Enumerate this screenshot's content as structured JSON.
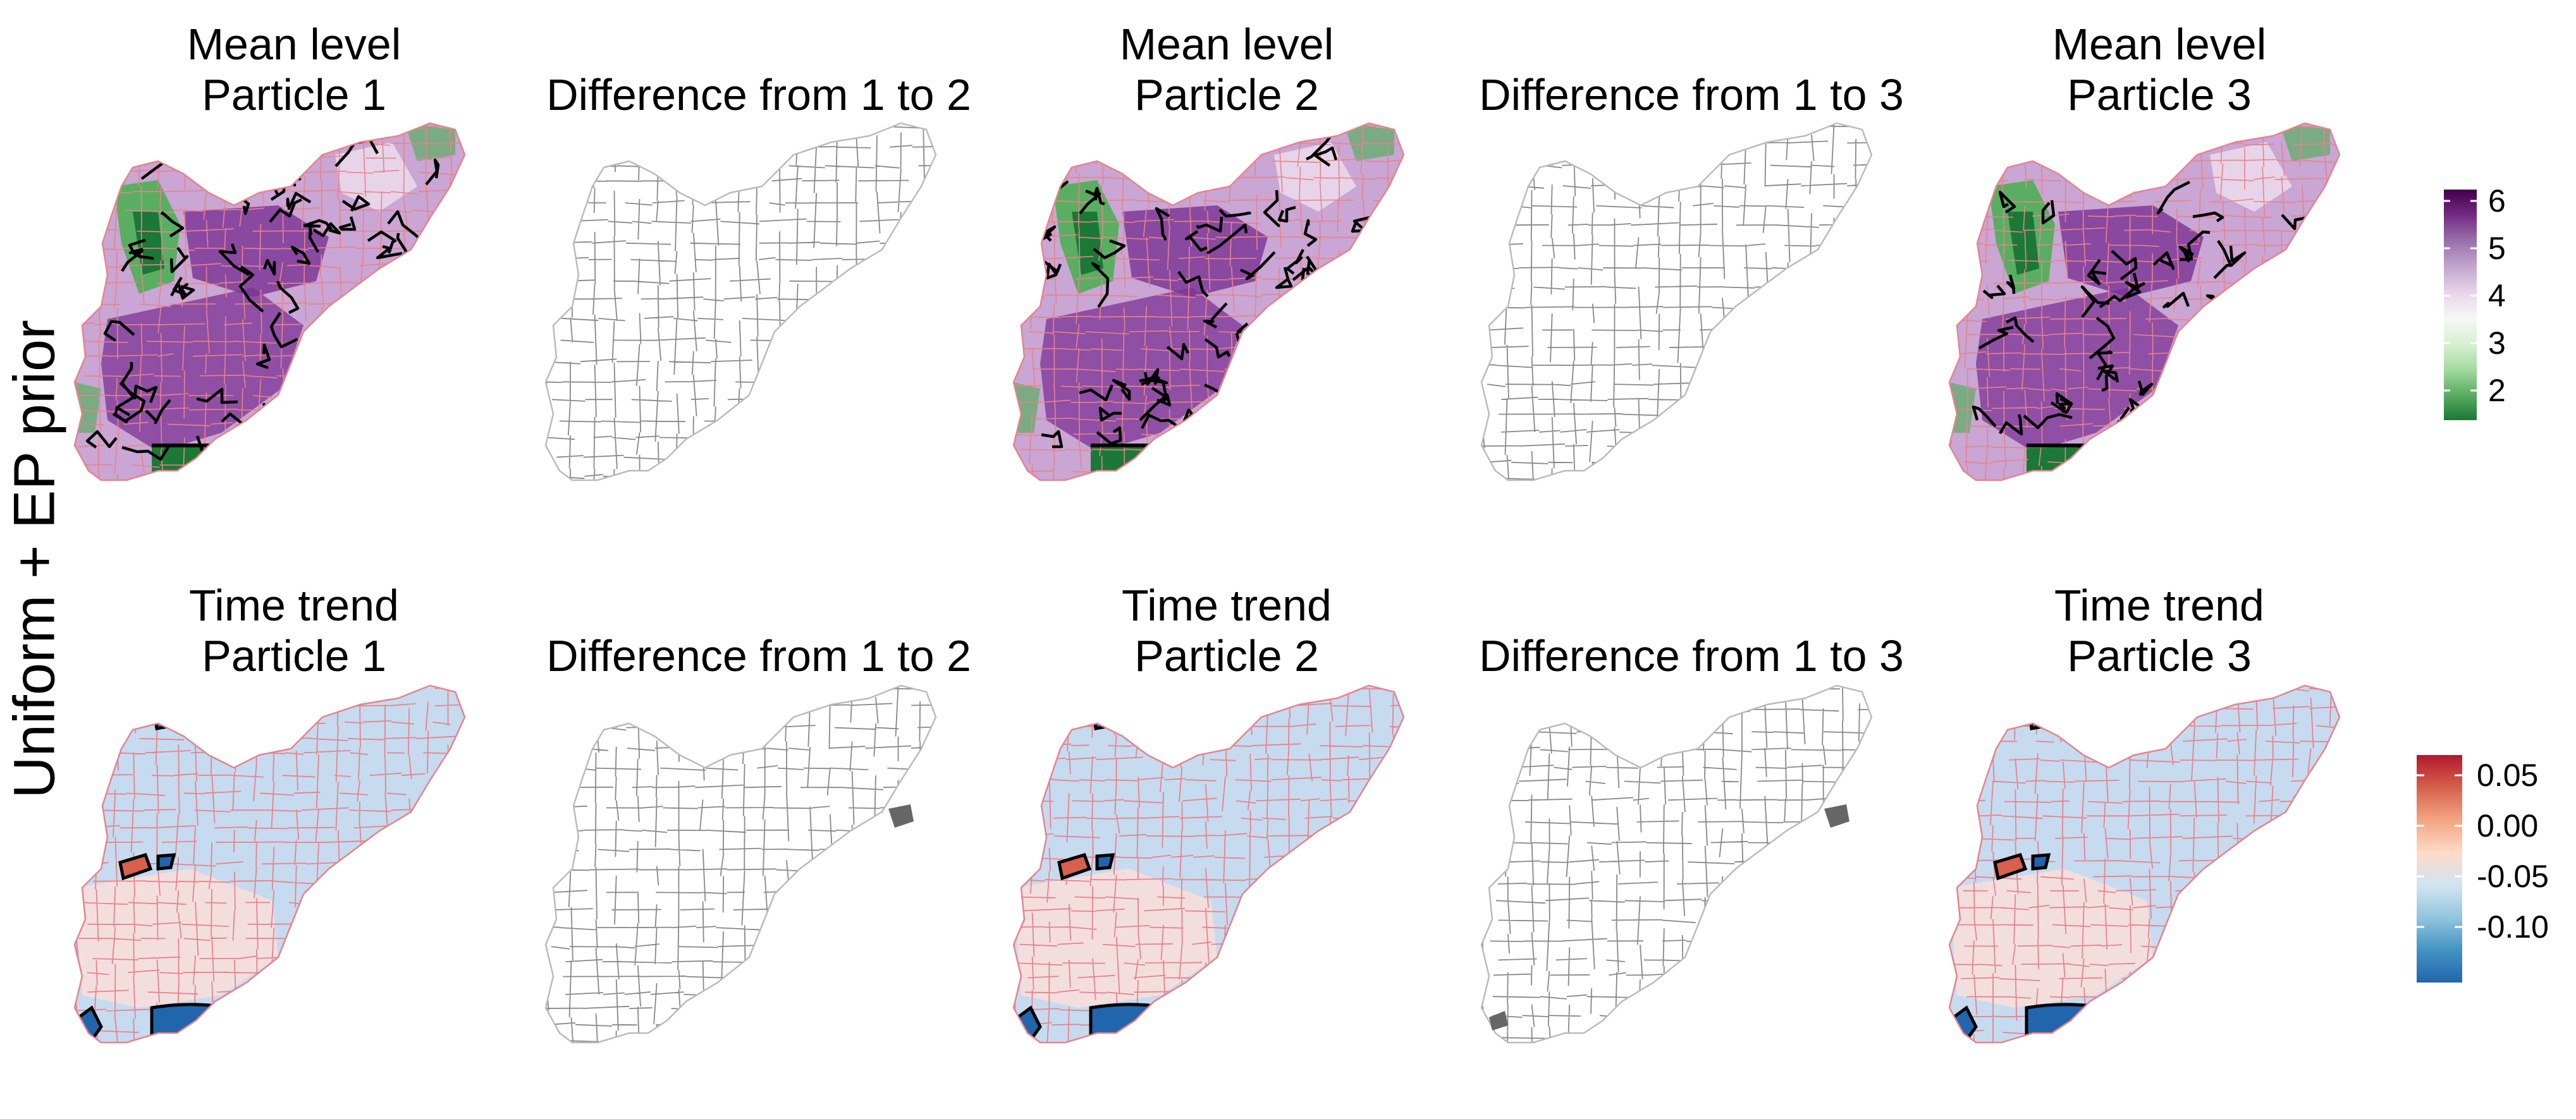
{
  "row_label": "Uniform + EP prior",
  "panels": [
    {
      "title_line1": "Mean level",
      "title_line2": "Particle 1",
      "kind": "mean"
    },
    {
      "title_line1": "",
      "title_line2": "Difference from 1 to 2",
      "kind": "diff"
    },
    {
      "title_line1": "Mean level",
      "title_line2": "Particle 2",
      "kind": "mean"
    },
    {
      "title_line1": "",
      "title_line2": "Difference from 1 to 3",
      "kind": "diff"
    },
    {
      "title_line1": "Mean level",
      "title_line2": "Particle 3",
      "kind": "mean"
    },
    {
      "title_line1": "Time trend",
      "title_line2": "Particle 1",
      "kind": "trend"
    },
    {
      "title_line1": "",
      "title_line2": "Difference from 1 to 2",
      "kind": "diff"
    },
    {
      "title_line1": "Time trend",
      "title_line2": "Particle 2",
      "kind": "trend"
    },
    {
      "title_line1": "",
      "title_line2": "Difference from 1 to 3",
      "kind": "diff"
    },
    {
      "title_line1": "Time trend",
      "title_line2": "Particle 3",
      "kind": "trend"
    }
  ],
  "legends": {
    "mean_level": {
      "ticks": [
        "6",
        "5",
        "4",
        "3",
        "2"
      ],
      "colors": [
        "#40004b",
        "#762a83",
        "#9970ab",
        "#c2a5cf",
        "#e7d4e8",
        "#f7f7f7",
        "#d9f0d3",
        "#a6dba0",
        "#5aae61",
        "#1b7837"
      ]
    },
    "time_trend": {
      "ticks": [
        "0.05",
        "0.00",
        "-0.05",
        "-0.10"
      ],
      "colors": [
        "#b2182b",
        "#d6604d",
        "#f4a582",
        "#fddbc7",
        "#d1e5f0",
        "#92c5de",
        "#4393c3",
        "#2166ac"
      ]
    }
  },
  "map_colors": {
    "mean_fill_main": "#c9a6d3",
    "mean_fill_dark": "#7b3294",
    "mean_fill_green": "#5aae61",
    "mean_fill_darkgreen": "#1b7837",
    "trend_fill_light": "#c6dbef",
    "trend_fill_blue": "#2166ac",
    "trend_fill_red": "#d6604d",
    "tract_line_pink": "#e8828c",
    "diff_line_gray": "#888888"
  }
}
